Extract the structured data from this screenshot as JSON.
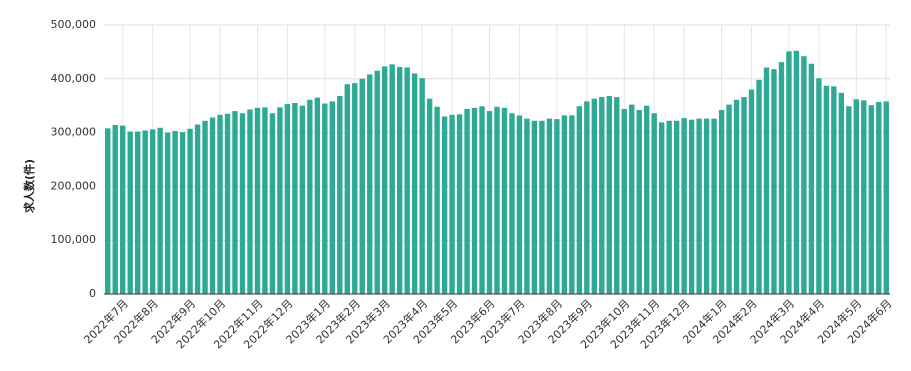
{
  "chart_data": {
    "type": "bar",
    "y_label": "求人数(件)",
    "color": "#2ea995",
    "grid": true,
    "categories": [
      null,
      null,
      "2022年7月",
      null,
      null,
      null,
      "2022年8月",
      null,
      null,
      null,
      null,
      "2022年9月",
      null,
      null,
      null,
      "2022年10月",
      null,
      null,
      null,
      null,
      "2022年11月",
      null,
      null,
      null,
      "2022年12月",
      null,
      null,
      null,
      null,
      "2023年1月",
      null,
      null,
      null,
      "2023年2月",
      null,
      null,
      null,
      "2023年3月",
      null,
      null,
      null,
      null,
      "2023年4月",
      null,
      null,
      null,
      "2023年5月",
      null,
      null,
      null,
      null,
      "2023年6月",
      null,
      null,
      null,
      "2023年7月",
      null,
      null,
      null,
      null,
      "2023年8月",
      null,
      null,
      null,
      "2023年9月",
      null,
      null,
      null,
      null,
      "2023年10月",
      null,
      null,
      null,
      "2023年11月",
      null,
      null,
      null,
      "2023年12月",
      null,
      null,
      null,
      null,
      "2024年1月",
      null,
      null,
      null,
      "2024年2月",
      null,
      null,
      null,
      null,
      "2024年3月",
      null,
      null,
      null,
      "2024年4月",
      null,
      null,
      null,
      null,
      "2024年5月",
      null,
      null,
      null,
      "2024年6月"
    ],
    "values": [
      308000,
      314000,
      313000,
      302000,
      302000,
      304000,
      306000,
      309000,
      300000,
      303000,
      301000,
      307000,
      315000,
      322000,
      328000,
      333000,
      335000,
      340000,
      336000,
      343000,
      346000,
      347000,
      336000,
      347000,
      353000,
      355000,
      350000,
      361000,
      365000,
      354000,
      358000,
      368000,
      390000,
      392000,
      400000,
      408000,
      415000,
      423000,
      427000,
      422000,
      421000,
      410000,
      401000,
      363000,
      348000,
      330000,
      333000,
      334000,
      344000,
      346000,
      349000,
      340000,
      348000,
      346000,
      336000,
      332000,
      326000,
      322000,
      322000,
      326000,
      325000,
      332000,
      332000,
      349000,
      358000,
      363000,
      366000,
      368000,
      366000,
      344000,
      352000,
      342000,
      350000,
      336000,
      319000,
      322000,
      322000,
      327000,
      324000,
      326000,
      326000,
      326000,
      342000,
      352000,
      361000,
      366000,
      380000,
      398000,
      421000,
      418000,
      431000,
      451000,
      452000,
      442000,
      428000,
      401000,
      387000,
      386000,
      374000,
      349000,
      362000,
      360000,
      351000,
      357000,
      358000
    ],
    "ylim": [
      0,
      500000
    ],
    "yticks": [
      0,
      {
        "value": 100000,
        "label": "100,000"
      },
      {
        "value": 200000,
        "label": "200,000"
      },
      {
        "value": 300000,
        "label": "300,000"
      },
      {
        "value": 400000,
        "label": "400,000"
      },
      {
        "value": 500000,
        "label": "500,000"
      }
    ]
  }
}
